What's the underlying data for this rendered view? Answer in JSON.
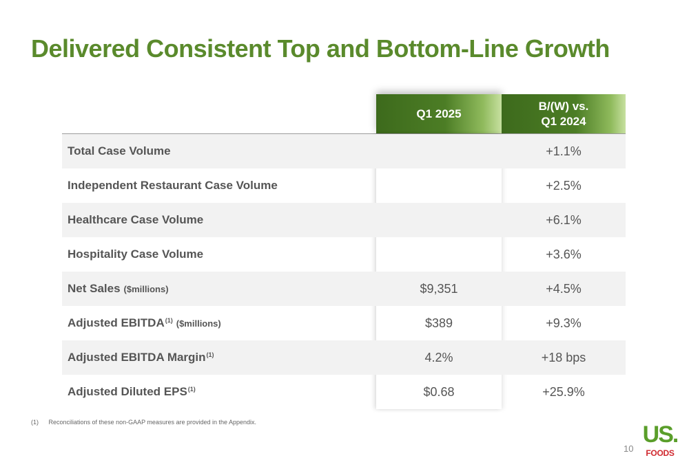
{
  "title": "Delivered Consistent Top and Bottom-Line Growth",
  "table": {
    "headers": {
      "q1": "Q1 2025",
      "bw_line1": "B/(W) vs.",
      "bw_line2": "Q1 2024"
    },
    "rows": [
      {
        "label": "Total Case Volume",
        "sup": "",
        "unit": "",
        "q1": "",
        "bw": "+1.1%"
      },
      {
        "label": "Independent Restaurant Case Volume",
        "sup": "",
        "unit": "",
        "q1": "",
        "bw": "+2.5%"
      },
      {
        "label": "Healthcare Case Volume",
        "sup": "",
        "unit": "",
        "q1": "",
        "bw": "+6.1%"
      },
      {
        "label": "Hospitality Case Volume",
        "sup": "",
        "unit": "",
        "q1": "",
        "bw": "+3.6%"
      },
      {
        "label": "Net Sales",
        "sup": "",
        "unit": "($millions)",
        "q1": "$9,351",
        "bw": "+4.5%"
      },
      {
        "label": "Adjusted EBITDA",
        "sup": "(1)",
        "unit": "($millions)",
        "q1": "$389",
        "bw": "+9.3%"
      },
      {
        "label": "Adjusted EBITDA Margin",
        "sup": "(1)",
        "unit": "",
        "q1": "4.2%",
        "bw": "+18 bps"
      },
      {
        "label": "Adjusted Diluted EPS",
        "sup": "(1)",
        "unit": "",
        "q1": "$0.68",
        "bw": "+25.9%"
      }
    ]
  },
  "footnote": {
    "number": "(1)",
    "text": "Reconciliations of these non-GAAP measures are provided in the Appendix."
  },
  "page_number": "10",
  "logo": {
    "line1": "US.",
    "line2": "FOODS"
  },
  "colors": {
    "title_green": "#5a8a2c",
    "header_green": "#4c7d25",
    "logo_green": "#5a9e2a",
    "logo_red": "#d0282e"
  }
}
